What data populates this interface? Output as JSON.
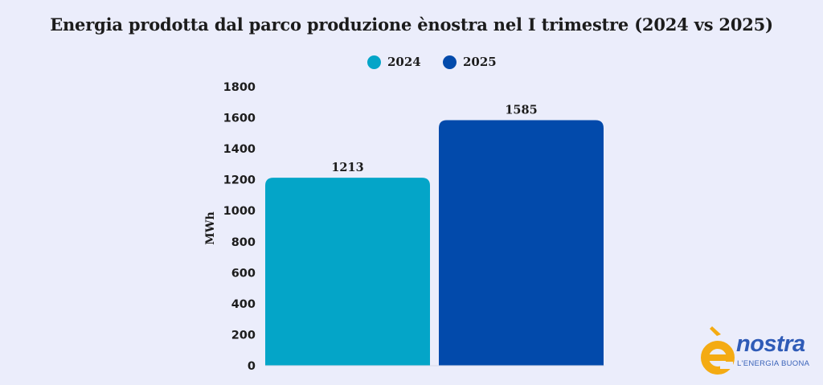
{
  "chart_data": {
    "type": "bar",
    "title": "Energia prodotta dal parco produzione ènostra nel I trimestre (2024 vs 2025)",
    "ylabel": "MWh",
    "xlabel": "",
    "ylim": [
      0,
      1800
    ],
    "yticks": [
      0,
      200,
      400,
      600,
      800,
      1000,
      1200,
      1400,
      1600,
      1800
    ],
    "grid": false,
    "legend_position": "top-center",
    "series": [
      {
        "name": "2024",
        "value": 1213,
        "color": "#04a5c8"
      },
      {
        "name": "2025",
        "value": 1585,
        "color": "#024aab"
      }
    ]
  },
  "logo": {
    "name": "nostra",
    "tagline": "L'ENERGIA BUONA"
  }
}
